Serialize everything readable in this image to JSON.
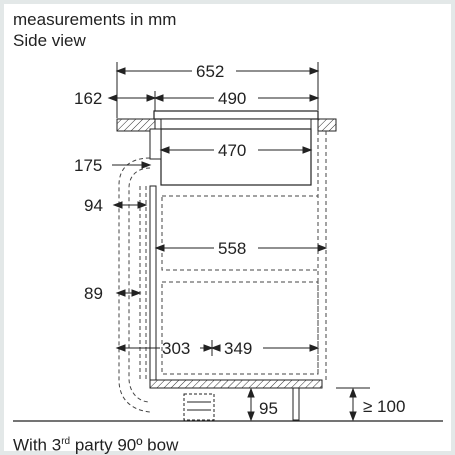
{
  "header": {
    "units": "measurements in mm",
    "view": "Side view"
  },
  "dimensions": {
    "overall_depth": "652",
    "rear_offset": "162",
    "hob_depth": "490",
    "cutout_offset": "175",
    "unit_depth": "470",
    "gap_upper": "94",
    "cabinet_depth": "558",
    "gap_lower": "89",
    "front_depth": "303",
    "rear_depth": "349",
    "plinth_height": "95",
    "min_height": "≥ 100"
  },
  "footer": {
    "prefix": "With 3",
    "superscript": "rd",
    "suffix": " party 90º bow"
  },
  "colors": {
    "line": "#222222",
    "dashed": "#333333",
    "background": "#ffffff",
    "border": "#e3e8e8"
  }
}
